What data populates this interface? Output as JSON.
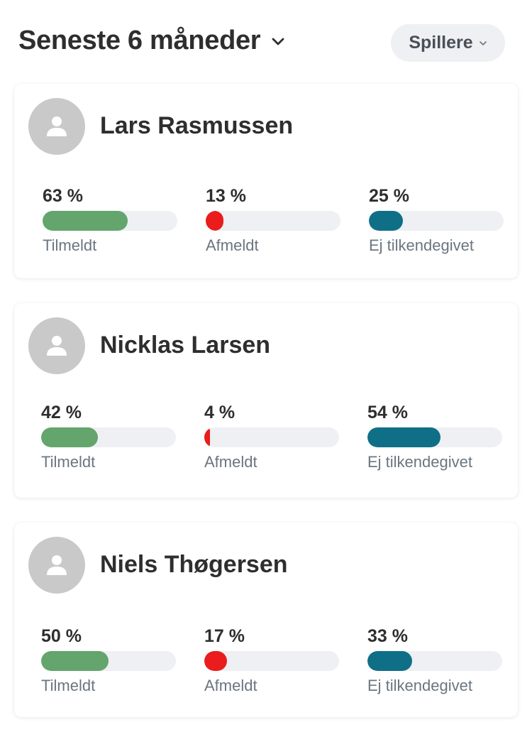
{
  "header": {
    "period_label": "Seneste 6 måneder",
    "filter_label": "Spillere"
  },
  "colors": {
    "registered": "#63a56c",
    "declined": "#ea1c1c",
    "unanswered": "#0f6f87",
    "track": "#eef0f3",
    "avatar_bg": "#c9c9c9"
  },
  "icons": {
    "period_chevron": "chevron-down-icon",
    "filter_chevron": "chevron-down-icon",
    "avatar": "user-icon"
  },
  "players": [
    {
      "name": "Lars Rasmussen",
      "stats": [
        {
          "label": "Tilmeldt",
          "value_text": "63 %",
          "fraction": 0.63,
          "kind": "registered"
        },
        {
          "label": "Afmeldt",
          "value_text": "13 %",
          "fraction": 0.13,
          "kind": "declined"
        },
        {
          "label": "Ej tilkendegivet",
          "value_text": "25 %",
          "fraction": 0.25,
          "kind": "unanswered"
        }
      ]
    },
    {
      "name": "Nicklas Larsen",
      "stats": [
        {
          "label": "Tilmeldt",
          "value_text": "42 %",
          "fraction": 0.42,
          "kind": "registered"
        },
        {
          "label": "Afmeldt",
          "value_text": "4 %",
          "fraction": 0.04,
          "kind": "declined"
        },
        {
          "label": "Ej tilkendegivet",
          "value_text": "54 %",
          "fraction": 0.54,
          "kind": "unanswered"
        }
      ]
    },
    {
      "name": "Niels Thøgersen",
      "stats": [
        {
          "label": "Tilmeldt",
          "value_text": "50 %",
          "fraction": 0.5,
          "kind": "registered"
        },
        {
          "label": "Afmeldt",
          "value_text": "17 %",
          "fraction": 0.17,
          "kind": "declined"
        },
        {
          "label": "Ej tilkendegivet",
          "value_text": "33 %",
          "fraction": 0.33,
          "kind": "unanswered"
        }
      ]
    }
  ]
}
